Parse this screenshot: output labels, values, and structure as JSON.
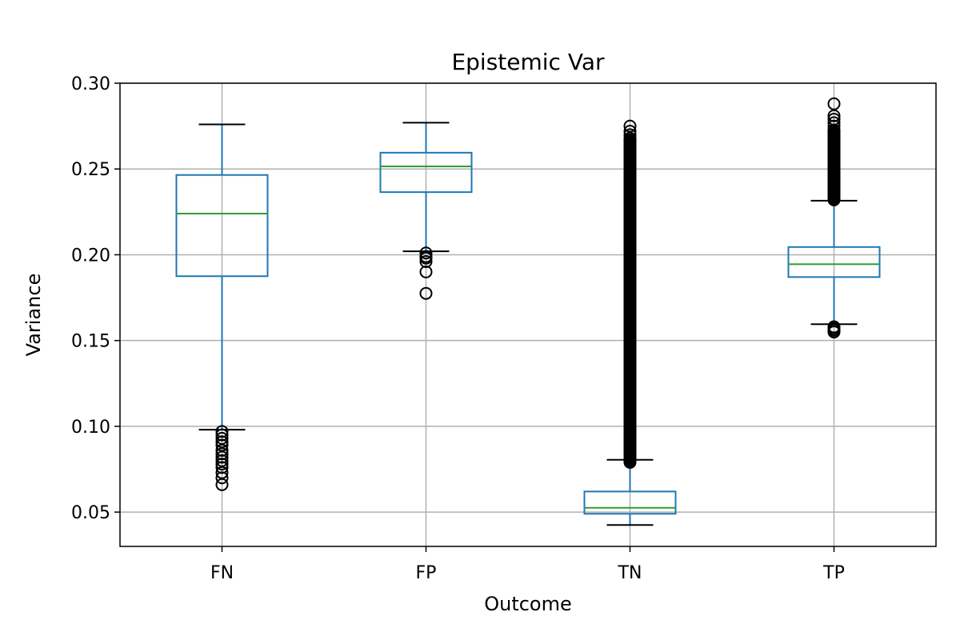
{
  "chart_data": {
    "type": "box",
    "title": "Epistemic Var",
    "xlabel": "Outcome",
    "ylabel": "Variance",
    "ylim": [
      0.03,
      0.3
    ],
    "yticks": [
      0.05,
      0.1,
      0.15,
      0.2,
      0.25,
      0.3
    ],
    "ytick_labels": [
      "0.05",
      "0.10",
      "0.15",
      "0.20",
      "0.25",
      "0.30"
    ],
    "grid": true,
    "colors": {
      "box": "#1f77b4",
      "median": "#2ca02c",
      "whisker": "#1f77b4",
      "cap": "#000000",
      "outlier": "#000000",
      "grid": "#b0b0b0"
    },
    "categories": [
      "FN",
      "FP",
      "TN",
      "TP"
    ],
    "boxes": [
      {
        "category": "FN",
        "whisker_low": 0.098,
        "q1": 0.1875,
        "median": 0.224,
        "q3": 0.2465,
        "whisker_high": 0.276,
        "outliers": [
          0.097,
          0.095,
          0.093,
          0.091,
          0.089,
          0.086,
          0.084,
          0.082,
          0.08,
          0.078,
          0.076,
          0.073,
          0.07,
          0.066
        ]
      },
      {
        "category": "FP",
        "whisker_low": 0.202,
        "q1": 0.2365,
        "median": 0.2515,
        "q3": 0.2595,
        "whisker_high": 0.277,
        "outliers": [
          0.201,
          0.199,
          0.198,
          0.196,
          0.19,
          0.1775
        ]
      },
      {
        "category": "TN",
        "whisker_low": 0.0425,
        "q1": 0.049,
        "median": 0.0525,
        "q3": 0.062,
        "whisker_high": 0.0805,
        "outliers": [
          0.275,
          0.272,
          0.27,
          0.268
        ],
        "outlier_range": [
          0.079,
          0.267
        ]
      },
      {
        "category": "TP",
        "whisker_low": 0.1595,
        "q1": 0.187,
        "median": 0.1945,
        "q3": 0.2045,
        "whisker_high": 0.2315,
        "outliers": [
          0.288,
          0.281,
          0.279,
          0.277,
          0.275,
          0.158,
          0.157,
          0.156,
          0.155
        ],
        "outlier_range": [
          0.232,
          0.273
        ]
      }
    ]
  }
}
